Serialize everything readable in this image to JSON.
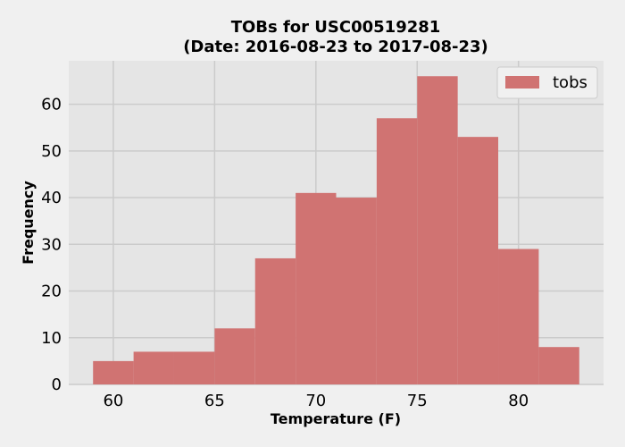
{
  "chart_data": {
    "type": "bar",
    "title": "TOBs for USC00519281",
    "subtitle": "(Date: 2016-08-23 to 2017-08-23)",
    "xlabel": "Temperature (F)",
    "ylabel": "Frequency",
    "xlim": [
      57.8,
      84.2
    ],
    "ylim": [
      0,
      69.3
    ],
    "bins": [
      {
        "start": 59,
        "end": 61,
        "count": 5
      },
      {
        "start": 61,
        "end": 63,
        "count": 7
      },
      {
        "start": 63,
        "end": 65,
        "count": 7
      },
      {
        "start": 65,
        "end": 67,
        "count": 12
      },
      {
        "start": 67,
        "end": 69,
        "count": 27
      },
      {
        "start": 69,
        "end": 71,
        "count": 41
      },
      {
        "start": 71,
        "end": 73,
        "count": 40
      },
      {
        "start": 73,
        "end": 75,
        "count": 57
      },
      {
        "start": 75,
        "end": 77,
        "count": 66
      },
      {
        "start": 77,
        "end": 79,
        "count": 53
      },
      {
        "start": 79,
        "end": 81,
        "count": 29
      },
      {
        "start": 81,
        "end": 83,
        "count": 8
      }
    ],
    "x_ticks": [
      60,
      65,
      70,
      75,
      80
    ],
    "y_ticks": [
      0,
      10,
      20,
      30,
      40,
      50,
      60
    ],
    "series": [
      {
        "name": "tobs",
        "color": "#c8413f"
      }
    ],
    "bar_color": "#d07372",
    "grid": true,
    "legend_position": "top-right",
    "style": "fivethirtyeight"
  }
}
